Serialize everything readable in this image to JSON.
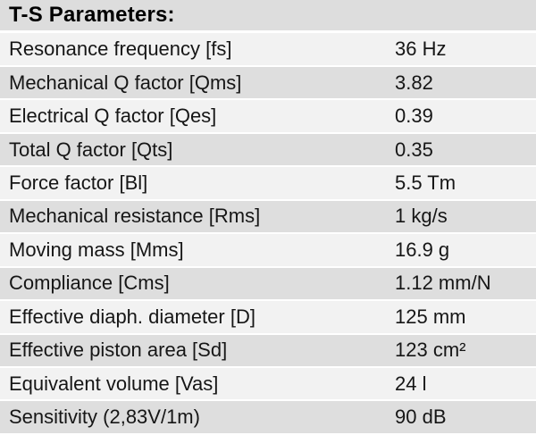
{
  "table": {
    "title": "T-S Parameters:",
    "rows": [
      {
        "label": "Resonance frequency [fs]",
        "value": "36 Hz"
      },
      {
        "label": "Mechanical Q factor [Qms]",
        "value": "3.82"
      },
      {
        "label": "Electrical Q factor [Qes]",
        "value": "0.39"
      },
      {
        "label": "Total Q factor [Qts]",
        "value": "0.35"
      },
      {
        "label": "Force factor [Bl]",
        "value": "5.5 Tm"
      },
      {
        "label": "Mechanical resistance [Rms]",
        "value": "1 kg/s"
      },
      {
        "label": "Moving mass [Mms]",
        "value": "16.9 g"
      },
      {
        "label": "Compliance [Cms]",
        "value": "1.12 mm/N"
      },
      {
        "label": "Effective diaph. diameter [D]",
        "value": "125 mm"
      },
      {
        "label": "Effective piston area [Sd]",
        "value": "123 cm²"
      },
      {
        "label": "Equivalent volume [Vas]",
        "value": "24 l"
      },
      {
        "label": "Sensitivity (2,83V/1m)",
        "value": "90 dB"
      }
    ]
  },
  "colors": {
    "row_light": "#f2f2f2",
    "row_dark": "#dedede",
    "header_bg": "#dddddd",
    "text": "#161616",
    "separator": "#ffffff"
  }
}
